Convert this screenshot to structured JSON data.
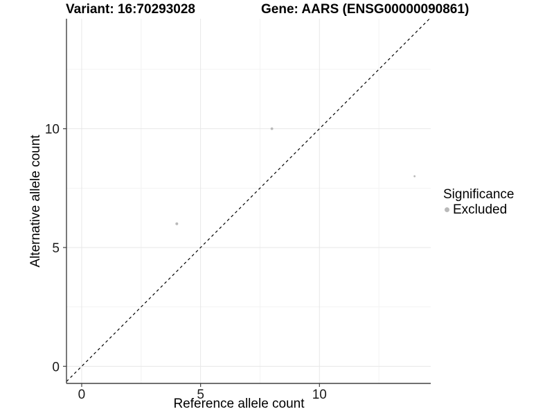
{
  "header": {
    "title_left": "Variant: 16:70293028",
    "title_right": "Gene: AARS (ENSG00000090861)"
  },
  "chart_data": {
    "type": "scatter",
    "title": "Variant: 16:70293028 / Gene: AARS (ENSG00000090861)",
    "xlabel": "Reference allele count",
    "ylabel": "Alternative allele count",
    "xlim": [
      -0.64,
      14.68
    ],
    "ylim": [
      -0.72,
      14.63
    ],
    "x_ticks": [
      0,
      5,
      10
    ],
    "y_ticks": [
      0,
      5,
      10
    ],
    "x_minor_gridlines": [
      2.5,
      7.5,
      12.5
    ],
    "y_minor_gridlines": [
      2.5,
      7.5,
      12.5
    ],
    "grid": "major+minor",
    "points": [
      {
        "x": 4,
        "y": 6,
        "r": 2.0,
        "significance": "Excluded"
      },
      {
        "x": 8,
        "y": 10,
        "r": 1.9,
        "significance": "Excluded"
      },
      {
        "x": 14,
        "y": 8,
        "r": 1.4,
        "significance": "Excluded"
      }
    ],
    "reference_line": {
      "type": "identity",
      "equation": "y = x",
      "style": "dashed",
      "color": "#000000"
    },
    "legend": {
      "title": "Significance",
      "position": "right",
      "items": [
        {
          "label": "Excluded",
          "color": "#b9b9b9"
        }
      ]
    },
    "colors": {
      "point": "#b9b9b9",
      "grid_major": "#e7e7e7",
      "grid_minor": "#f3f3f3",
      "axis_line": "#404040",
      "tick_label": "#1a1a1a"
    }
  }
}
